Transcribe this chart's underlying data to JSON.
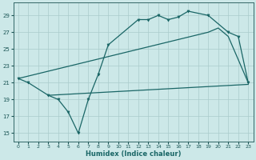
{
  "bg_color": "#cce8e8",
  "grid_color": "#aacccc",
  "line_color": "#1a6666",
  "xlabel": "Humidex (Indice chaleur)",
  "xlim": [
    -0.5,
    23.5
  ],
  "ylim": [
    14.0,
    30.5
  ],
  "yticks": [
    15,
    17,
    19,
    21,
    23,
    25,
    27,
    29
  ],
  "xticks": [
    0,
    1,
    2,
    3,
    4,
    5,
    6,
    7,
    8,
    9,
    10,
    11,
    12,
    13,
    14,
    15,
    16,
    17,
    18,
    19,
    20,
    21,
    22,
    23
  ],
  "curve1_x": [
    0,
    1,
    3,
    4,
    5,
    6,
    7,
    8,
    9,
    12,
    13,
    14,
    15,
    16,
    17,
    19,
    21,
    22,
    23
  ],
  "curve1_y": [
    21.5,
    21.0,
    19.5,
    19.0,
    17.5,
    15.0,
    19.0,
    22.0,
    25.5,
    28.5,
    28.5,
    29.0,
    28.5,
    28.8,
    29.5,
    29.0,
    27.0,
    26.5,
    21.0
  ],
  "curve2_x": [
    0,
    19,
    20,
    21,
    23
  ],
  "curve2_y": [
    21.5,
    27.0,
    27.5,
    26.5,
    21.0
  ],
  "curve3_x": [
    3,
    23
  ],
  "curve3_y": [
    19.5,
    20.8
  ]
}
